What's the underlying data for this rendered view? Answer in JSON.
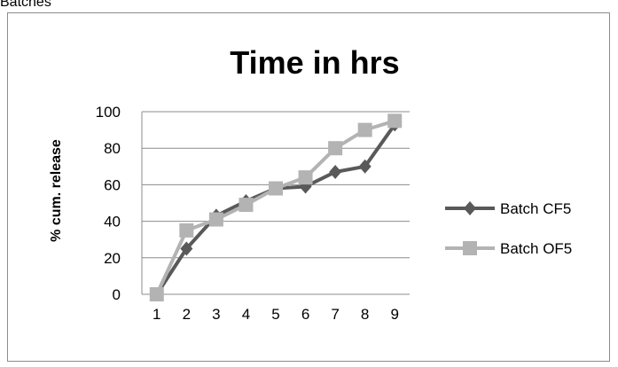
{
  "caption": "Batches",
  "chart_data": {
    "type": "line",
    "title": "Time in hrs",
    "xlabel": "",
    "ylabel": "% cum. release",
    "categories": [
      "1",
      "2",
      "3",
      "4",
      "5",
      "6",
      "7",
      "8",
      "9"
    ],
    "ylim": [
      0,
      100
    ],
    "yticks": [
      0,
      20,
      40,
      60,
      80,
      100
    ],
    "grid": true,
    "legend_position": "right",
    "series": [
      {
        "name": "Batch CF5",
        "marker": "diamond",
        "color": "#595959",
        "values": [
          0,
          25,
          43,
          51,
          58,
          59,
          67,
          70,
          93
        ]
      },
      {
        "name": "Batch OF5",
        "marker": "square",
        "color": "#b3b3b3",
        "values": [
          0,
          35,
          41,
          49,
          58,
          64,
          80,
          90,
          95
        ]
      }
    ]
  }
}
